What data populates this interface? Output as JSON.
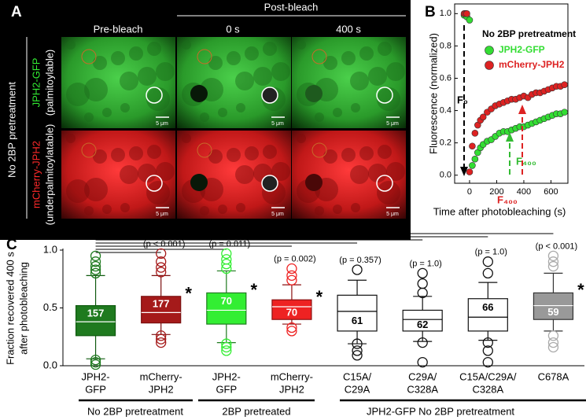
{
  "panel_a": {
    "label": "A",
    "header": "Post-bleach",
    "columns": [
      "Pre-bleach",
      "0 s",
      "400 s"
    ],
    "row_group": "No 2BP pretreatment",
    "rows": [
      {
        "name": "JPH2-GFP",
        "note": "(palmitoylable)"
      },
      {
        "name": "mCherry-JPH2",
        "note": "(underpalmitoylatable)"
      }
    ],
    "scale_bar": "5 μm"
  },
  "chart_data": [
    {
      "type": "scatter",
      "label": "B",
      "title": "No 2BP pretreatment",
      "x_label": "Time after photobleaching (s)",
      "y_label": "Fluorescence (normalized)",
      "x": [
        -40,
        -30,
        -20,
        0,
        20,
        40,
        60,
        80,
        100,
        130,
        160,
        190,
        220,
        250,
        280,
        310,
        340,
        370,
        400,
        430,
        460,
        490,
        520,
        550,
        580,
        610,
        640,
        670,
        700
      ],
      "series": [
        {
          "name": "JPH2-GFP",
          "color": "#33dd33",
          "values": [
            0.99,
            1.0,
            0.98,
            0.96,
            0.06,
            0.1,
            0.14,
            0.17,
            0.19,
            0.21,
            0.22,
            0.24,
            0.26,
            0.27,
            0.27,
            0.28,
            0.29,
            0.3,
            0.3,
            0.31,
            0.32,
            0.33,
            0.34,
            0.35,
            0.36,
            0.37,
            0.38,
            0.38,
            0.39
          ]
        },
        {
          "name": "mCherry-JPH2",
          "color": "#dd2222",
          "values": [
            1.0,
            1.0,
            1.0,
            0.02,
            0.18,
            0.26,
            0.31,
            0.34,
            0.36,
            0.39,
            0.41,
            0.43,
            0.44,
            0.45,
            0.46,
            0.47,
            0.47,
            0.48,
            0.49,
            0.48,
            0.5,
            0.51,
            0.51,
            0.52,
            0.53,
            0.54,
            0.55,
            0.55,
            0.56
          ]
        }
      ],
      "annotations": [
        "F₀",
        "F₄₀₀",
        "F₄₀₀"
      ],
      "xlim": [
        -110,
        725
      ],
      "xticks": [
        0,
        200,
        400,
        600
      ],
      "ylim": [
        -0.05,
        1.06
      ],
      "yticks": [
        {
          "value": 0,
          "label": "0.0"
        },
        {
          "value": 0.2,
          "label": "0.2"
        },
        {
          "value": 0.4,
          "label": "0.4"
        },
        {
          "value": 0.6,
          "label": "0.6"
        },
        {
          "value": 0.8,
          "label": "0.8"
        },
        {
          "value": 1,
          "label": "1.0"
        }
      ]
    },
    {
      "type": "box",
      "label": "C",
      "y_label": [
        "Fraction recovered 400 s",
        "after photobleaching"
      ],
      "ylim": [
        0,
        1
      ],
      "yticks": [
        {
          "value": 0,
          "label": "0.0"
        },
        {
          "value": 0.5,
          "label": "0.5"
        },
        {
          "value": 1,
          "label": "1.0"
        }
      ],
      "categories": [
        [
          "JPH2-",
          "GFP"
        ],
        [
          "mCherry-",
          "JPH2"
        ],
        [
          "JPH2-",
          "GFP"
        ],
        [
          "mCherry-",
          "JPH2"
        ],
        [
          "C15A/",
          "C29A"
        ],
        [
          "C29A/",
          "C328A"
        ],
        [
          "C15A/C29A/",
          "C328A"
        ],
        [
          "C678A"
        ]
      ],
      "groups": [
        "No 2BP pretreatment",
        "2BP pretreated",
        "JPH2-GFP No 2BP pretreatment"
      ],
      "boxes": [
        {
          "color": "#1f7a1f",
          "edge": "#0f5a0f",
          "whisker_low": 0.06,
          "q1": 0.26,
          "median": 0.38,
          "q3": 0.52,
          "whisker_high": 0.78,
          "n": 157,
          "outliers": [
            0.01,
            0.03,
            0.05,
            0.8,
            0.83,
            0.86,
            0.9,
            0.95
          ]
        },
        {
          "color": "#a51a1a",
          "edge": "#7a0f0f",
          "whisker_low": 0.27,
          "q1": 0.37,
          "median": 0.46,
          "q3": 0.6,
          "whisker_high": 0.78,
          "n": 177,
          "outliers": [
            0.2,
            0.23,
            0.26,
            0.81,
            0.85,
            0.9,
            0.97
          ],
          "p_value": "(p < 0.001)",
          "significance": "*"
        },
        {
          "color": "#33ee33",
          "edge": "#1f7a1f",
          "whisker_low": 0.2,
          "q1": 0.36,
          "median": 0.48,
          "q3": 0.63,
          "whisker_high": 0.82,
          "n": 70,
          "outliers": [
            0.13,
            0.16,
            0.19,
            0.84,
            0.88,
            0.92,
            0.97
          ],
          "p_value": "(p = 0.011)",
          "significance": "*"
        },
        {
          "color": "#ee2222",
          "edge": "#8a1010",
          "whisker_low": 0.36,
          "q1": 0.4,
          "median": 0.51,
          "q3": 0.57,
          "whisker_high": 0.7,
          "n": 70,
          "outliers": [
            0.3,
            0.33,
            0.74,
            0.78,
            0.84
          ],
          "p_value": "(p = 0.002)",
          "significance": "*"
        },
        {
          "color": "#ffffff",
          "edge": "#111111",
          "whisker_low": 0.19,
          "q1": 0.3,
          "median": 0.47,
          "q3": 0.61,
          "whisker_high": 0.74,
          "n": 61,
          "outliers": [
            0.09,
            0.13,
            0.19,
            0.83
          ],
          "p_value": "(p = 0.357)"
        },
        {
          "color": "#ffffff",
          "edge": "#111111",
          "whisker_low": 0.21,
          "q1": 0.3,
          "median": 0.4,
          "q3": 0.48,
          "whisker_high": 0.6,
          "n": 62,
          "outliers": [
            0.03,
            0.2,
            0.63,
            0.71,
            0.8
          ],
          "p_value": "(p = 1.0)"
        },
        {
          "color": "#ffffff",
          "edge": "#111111",
          "whisker_low": 0.22,
          "q1": 0.3,
          "median": 0.42,
          "q3": 0.58,
          "whisker_high": 0.72,
          "n": 66,
          "outliers": [
            0.03,
            0.13,
            0.2,
            0.8,
            0.9
          ],
          "p_value": "(p = 1.0)"
        },
        {
          "color": "#999999",
          "edge": "#333333",
          "whisker_low": 0.3,
          "q1": 0.4,
          "median": 0.52,
          "q3": 0.63,
          "whisker_high": 0.8,
          "n": 59,
          "outliers": [
            0.16,
            0.2,
            0.26,
            0.86,
            0.9,
            0.95
          ],
          "p_value": "(p < 0.001)",
          "significance": "*"
        }
      ]
    }
  ]
}
